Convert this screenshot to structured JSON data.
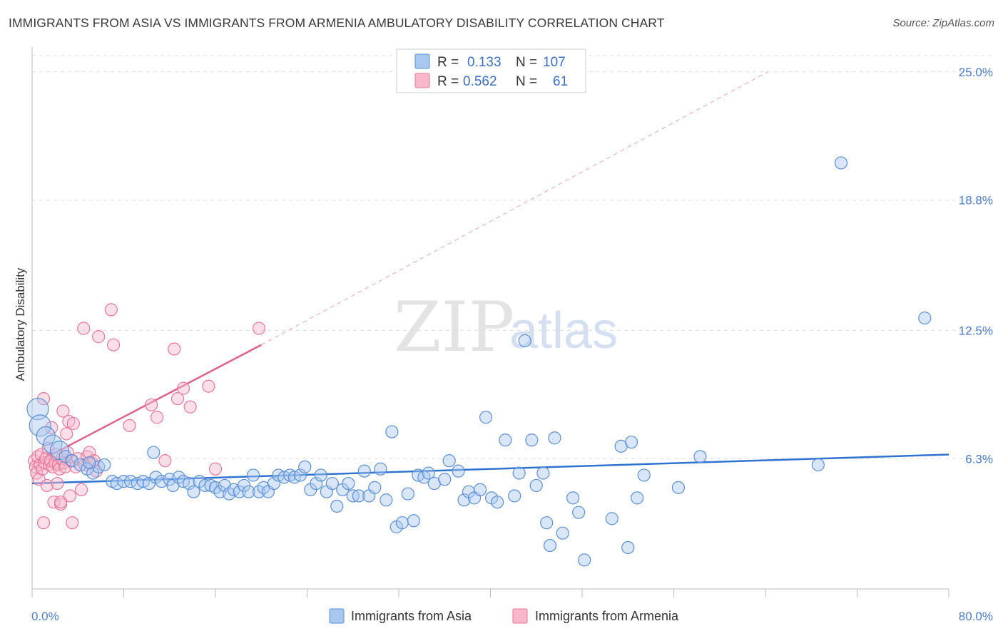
{
  "header": {
    "title": "IMMIGRANTS FROM ASIA VS IMMIGRANTS FROM ARMENIA AMBULATORY DISABILITY CORRELATION CHART",
    "source": "Source: ZipAtlas.com"
  },
  "watermark": {
    "zip": "ZIP",
    "atlas": "atlas"
  },
  "colors": {
    "asia_fill": "#a9c8f0",
    "asia_stroke": "#5b8fd8",
    "asia_line": "#2f73d0",
    "armenia_fill": "#f7b8cb",
    "armenia_stroke": "#e8769a",
    "armenia_line": "#e0608c",
    "grid": "#dcdcdc",
    "axis_label": "#4a7bd0"
  },
  "legend": {
    "rows": [
      {
        "r_label": "R =",
        "r_value": "0.133",
        "n_label": "N =",
        "n_value": "107"
      },
      {
        "r_label": "R =",
        "r_value": "0.562",
        "n_label": "N =",
        "n_value": "61"
      }
    ]
  },
  "bottom_legend": {
    "asia": "Immigrants from Asia",
    "armenia": "Immigrants from Armenia"
  },
  "chart_data": {
    "type": "scatter",
    "title": "IMMIGRANTS FROM ASIA VS IMMIGRANTS FROM ARMENIA AMBULATORY DISABILITY CORRELATION CHART",
    "xlabel": "",
    "ylabel": "Ambulatory Disability",
    "xlim": [
      0,
      80
    ],
    "ylim": [
      0,
      26.2
    ],
    "x_ticks_labeled": [
      "0.0%",
      "80.0%"
    ],
    "y_ticks": [
      6.3,
      12.5,
      18.8,
      25.0
    ],
    "y_tick_labels": [
      "6.3%",
      "12.5%",
      "18.8%",
      "25.0%"
    ],
    "grid": "horizontal dashed",
    "legend_position": "top-center",
    "series": [
      {
        "name": "Immigrants from Asia",
        "R": 0.133,
        "N": 107,
        "trend": {
          "x": [
            0,
            80
          ],
          "y": [
            5.1,
            6.5
          ],
          "style": "solid"
        },
        "points": [
          {
            "x": 0.5,
            "y": 8.7,
            "s": 3
          },
          {
            "x": 0.7,
            "y": 7.9,
            "s": 3
          },
          {
            "x": 1.2,
            "y": 7.4,
            "s": 2
          },
          {
            "x": 1.8,
            "y": 7.0,
            "s": 2
          },
          {
            "x": 2.4,
            "y": 6.7,
            "s": 2
          },
          {
            "x": 2.9,
            "y": 6.4,
            "s": 1
          },
          {
            "x": 3.5,
            "y": 6.2,
            "s": 1
          },
          {
            "x": 4.2,
            "y": 6.0,
            "s": 1
          },
          {
            "x": 4.8,
            "y": 5.8,
            "s": 1
          },
          {
            "x": 5.3,
            "y": 5.6,
            "s": 1
          },
          {
            "x": 5.8,
            "y": 5.9,
            "s": 1
          },
          {
            "x": 5.0,
            "y": 6.1,
            "s": 1
          },
          {
            "x": 6.3,
            "y": 6.0,
            "s": 1
          },
          {
            "x": 7.0,
            "y": 5.2,
            "s": 1
          },
          {
            "x": 7.4,
            "y": 5.1,
            "s": 1
          },
          {
            "x": 8.0,
            "y": 5.2,
            "s": 1
          },
          {
            "x": 8.6,
            "y": 5.2,
            "s": 1
          },
          {
            "x": 9.2,
            "y": 5.1,
            "s": 1
          },
          {
            "x": 9.7,
            "y": 5.2,
            "s": 1
          },
          {
            "x": 10.2,
            "y": 5.1,
            "s": 1
          },
          {
            "x": 10.8,
            "y": 5.4,
            "s": 1
          },
          {
            "x": 11.3,
            "y": 5.2,
            "s": 1
          },
          {
            "x": 10.6,
            "y": 6.6,
            "s": 1
          },
          {
            "x": 12.0,
            "y": 5.3,
            "s": 1
          },
          {
            "x": 12.3,
            "y": 5.0,
            "s": 1
          },
          {
            "x": 12.8,
            "y": 5.4,
            "s": 1
          },
          {
            "x": 13.2,
            "y": 5.2,
            "s": 1
          },
          {
            "x": 13.7,
            "y": 5.1,
            "s": 1
          },
          {
            "x": 14.1,
            "y": 4.7,
            "s": 1
          },
          {
            "x": 14.6,
            "y": 5.2,
            "s": 1
          },
          {
            "x": 15.1,
            "y": 5.0,
            "s": 1
          },
          {
            "x": 15.6,
            "y": 5.0,
            "s": 1
          },
          {
            "x": 16.0,
            "y": 4.9,
            "s": 1
          },
          {
            "x": 16.4,
            "y": 4.7,
            "s": 1
          },
          {
            "x": 16.8,
            "y": 5.0,
            "s": 1
          },
          {
            "x": 17.2,
            "y": 4.6,
            "s": 1
          },
          {
            "x": 17.6,
            "y": 4.8,
            "s": 1
          },
          {
            "x": 18.1,
            "y": 4.7,
            "s": 1
          },
          {
            "x": 18.5,
            "y": 5.0,
            "s": 1
          },
          {
            "x": 18.9,
            "y": 4.7,
            "s": 1
          },
          {
            "x": 19.3,
            "y": 5.5,
            "s": 1
          },
          {
            "x": 19.8,
            "y": 4.7,
            "s": 1
          },
          {
            "x": 20.2,
            "y": 4.9,
            "s": 1
          },
          {
            "x": 20.6,
            "y": 4.7,
            "s": 1
          },
          {
            "x": 21.1,
            "y": 5.1,
            "s": 1
          },
          {
            "x": 21.5,
            "y": 5.5,
            "s": 1
          },
          {
            "x": 22.0,
            "y": 5.4,
            "s": 1
          },
          {
            "x": 22.5,
            "y": 5.5,
            "s": 1
          },
          {
            "x": 22.9,
            "y": 5.4,
            "s": 1
          },
          {
            "x": 23.4,
            "y": 5.5,
            "s": 1
          },
          {
            "x": 23.8,
            "y": 5.9,
            "s": 1
          },
          {
            "x": 24.3,
            "y": 4.8,
            "s": 1
          },
          {
            "x": 24.8,
            "y": 5.1,
            "s": 1
          },
          {
            "x": 25.2,
            "y": 5.5,
            "s": 1
          },
          {
            "x": 25.7,
            "y": 4.7,
            "s": 1
          },
          {
            "x": 26.2,
            "y": 5.1,
            "s": 1
          },
          {
            "x": 26.6,
            "y": 4.0,
            "s": 1
          },
          {
            "x": 27.1,
            "y": 4.8,
            "s": 1
          },
          {
            "x": 27.6,
            "y": 5.1,
            "s": 1
          },
          {
            "x": 28.0,
            "y": 4.5,
            "s": 1
          },
          {
            "x": 28.5,
            "y": 4.5,
            "s": 1
          },
          {
            "x": 29.0,
            "y": 5.7,
            "s": 1
          },
          {
            "x": 29.4,
            "y": 4.5,
            "s": 1
          },
          {
            "x": 29.9,
            "y": 4.9,
            "s": 1
          },
          {
            "x": 30.4,
            "y": 5.8,
            "s": 1
          },
          {
            "x": 30.9,
            "y": 4.3,
            "s": 1
          },
          {
            "x": 31.4,
            "y": 7.6,
            "s": 1
          },
          {
            "x": 31.8,
            "y": 3.0,
            "s": 1
          },
          {
            "x": 32.3,
            "y": 3.2,
            "s": 1
          },
          {
            "x": 32.8,
            "y": 4.6,
            "s": 1
          },
          {
            "x": 33.3,
            "y": 3.3,
            "s": 1
          },
          {
            "x": 33.7,
            "y": 5.5,
            "s": 1
          },
          {
            "x": 34.2,
            "y": 5.4,
            "s": 1
          },
          {
            "x": 34.6,
            "y": 5.6,
            "s": 1
          },
          {
            "x": 35.1,
            "y": 5.1,
            "s": 1
          },
          {
            "x": 36.0,
            "y": 5.3,
            "s": 1
          },
          {
            "x": 36.4,
            "y": 6.2,
            "s": 1
          },
          {
            "x": 37.2,
            "y": 5.7,
            "s": 1
          },
          {
            "x": 37.7,
            "y": 4.3,
            "s": 1
          },
          {
            "x": 38.1,
            "y": 4.7,
            "s": 1
          },
          {
            "x": 38.6,
            "y": 4.4,
            "s": 1
          },
          {
            "x": 39.1,
            "y": 4.8,
            "s": 1
          },
          {
            "x": 39.6,
            "y": 8.3,
            "s": 1
          },
          {
            "x": 40.1,
            "y": 4.4,
            "s": 1
          },
          {
            "x": 40.6,
            "y": 4.2,
            "s": 1
          },
          {
            "x": 41.3,
            "y": 7.2,
            "s": 1
          },
          {
            "x": 42.1,
            "y": 4.5,
            "s": 1
          },
          {
            "x": 42.5,
            "y": 5.6,
            "s": 1
          },
          {
            "x": 43.0,
            "y": 12.0,
            "s": 1
          },
          {
            "x": 43.6,
            "y": 7.2,
            "s": 1
          },
          {
            "x": 44.0,
            "y": 5.0,
            "s": 1
          },
          {
            "x": 44.6,
            "y": 5.6,
            "s": 1
          },
          {
            "x": 44.9,
            "y": 3.2,
            "s": 1
          },
          {
            "x": 45.2,
            "y": 2.1,
            "s": 1
          },
          {
            "x": 45.6,
            "y": 7.3,
            "s": 1
          },
          {
            "x": 46.3,
            "y": 2.7,
            "s": 1
          },
          {
            "x": 47.2,
            "y": 4.4,
            "s": 1
          },
          {
            "x": 47.7,
            "y": 3.7,
            "s": 1
          },
          {
            "x": 48.2,
            "y": 1.4,
            "s": 1
          },
          {
            "x": 50.6,
            "y": 3.4,
            "s": 1
          },
          {
            "x": 51.4,
            "y": 6.9,
            "s": 1
          },
          {
            "x": 52.0,
            "y": 2.0,
            "s": 1
          },
          {
            "x": 52.3,
            "y": 7.1,
            "s": 1
          },
          {
            "x": 52.8,
            "y": 4.4,
            "s": 1
          },
          {
            "x": 53.4,
            "y": 5.5,
            "s": 1
          },
          {
            "x": 56.4,
            "y": 4.9,
            "s": 1
          },
          {
            "x": 58.3,
            "y": 6.4,
            "s": 1
          },
          {
            "x": 68.6,
            "y": 6.0,
            "s": 1
          },
          {
            "x": 70.6,
            "y": 20.6,
            "s": 1
          },
          {
            "x": 77.9,
            "y": 13.1,
            "s": 1
          }
        ]
      },
      {
        "name": "Immigrants from Armenia",
        "R": 0.562,
        "N": 61,
        "trend": {
          "x": [
            0,
            20.0
          ],
          "y": [
            6.0,
            11.8
          ],
          "style": "solid",
          "extended_to": [
            64.2,
            25.0
          ],
          "extended_style": "dashed"
        },
        "points": [
          {
            "x": 0.2,
            "y": 6.2,
            "s": 1
          },
          {
            "x": 0.3,
            "y": 5.9,
            "s": 1
          },
          {
            "x": 0.4,
            "y": 5.6,
            "s": 1
          },
          {
            "x": 0.5,
            "y": 6.4,
            "s": 1
          },
          {
            "x": 0.6,
            "y": 5.3,
            "s": 1
          },
          {
            "x": 0.7,
            "y": 6.0,
            "s": 1
          },
          {
            "x": 0.8,
            "y": 6.5,
            "s": 1
          },
          {
            "x": 0.9,
            "y": 5.8,
            "s": 1
          },
          {
            "x": 1.0,
            "y": 9.2,
            "s": 1
          },
          {
            "x": 1.1,
            "y": 6.1,
            "s": 1
          },
          {
            "x": 1.2,
            "y": 6.3,
            "s": 1
          },
          {
            "x": 1.3,
            "y": 5.0,
            "s": 1
          },
          {
            "x": 1.4,
            "y": 6.8,
            "s": 1
          },
          {
            "x": 1.5,
            "y": 6.0,
            "s": 1
          },
          {
            "x": 1.6,
            "y": 6.2,
            "s": 1
          },
          {
            "x": 1.7,
            "y": 7.8,
            "s": 1
          },
          {
            "x": 1.8,
            "y": 5.9,
            "s": 1
          },
          {
            "x": 1.9,
            "y": 4.2,
            "s": 1
          },
          {
            "x": 2.0,
            "y": 6.1,
            "s": 1
          },
          {
            "x": 2.1,
            "y": 6.5,
            "s": 1
          },
          {
            "x": 2.2,
            "y": 5.1,
            "s": 1
          },
          {
            "x": 2.3,
            "y": 6.0,
            "s": 1
          },
          {
            "x": 2.4,
            "y": 5.8,
            "s": 1
          },
          {
            "x": 2.5,
            "y": 4.1,
            "s": 1
          },
          {
            "x": 2.6,
            "y": 6.3,
            "s": 1
          },
          {
            "x": 2.7,
            "y": 8.6,
            "s": 1
          },
          {
            "x": 2.8,
            "y": 6.1,
            "s": 1
          },
          {
            "x": 2.9,
            "y": 5.9,
            "s": 1
          },
          {
            "x": 3.0,
            "y": 7.5,
            "s": 1
          },
          {
            "x": 3.1,
            "y": 6.6,
            "s": 1
          },
          {
            "x": 3.2,
            "y": 8.1,
            "s": 1
          },
          {
            "x": 3.3,
            "y": 4.5,
            "s": 1
          },
          {
            "x": 3.4,
            "y": 6.2,
            "s": 1
          },
          {
            "x": 3.6,
            "y": 8.0,
            "s": 1
          },
          {
            "x": 3.8,
            "y": 5.9,
            "s": 1
          },
          {
            "x": 4.0,
            "y": 6.3,
            "s": 1
          },
          {
            "x": 4.3,
            "y": 4.8,
            "s": 1
          },
          {
            "x": 4.6,
            "y": 6.0,
            "s": 1
          },
          {
            "x": 4.8,
            "y": 6.4,
            "s": 1
          },
          {
            "x": 5.0,
            "y": 6.6,
            "s": 1
          },
          {
            "x": 5.2,
            "y": 6.1,
            "s": 1
          },
          {
            "x": 5.4,
            "y": 6.2,
            "s": 1
          },
          {
            "x": 5.6,
            "y": 5.7,
            "s": 1
          },
          {
            "x": 1.0,
            "y": 3.2,
            "s": 1
          },
          {
            "x": 3.5,
            "y": 3.2,
            "s": 1
          },
          {
            "x": 2.5,
            "y": 4.2,
            "s": 1
          },
          {
            "x": 5.8,
            "y": 12.2,
            "s": 1
          },
          {
            "x": 6.9,
            "y": 13.5,
            "s": 1
          },
          {
            "x": 7.1,
            "y": 11.8,
            "s": 1
          },
          {
            "x": 8.5,
            "y": 7.9,
            "s": 1
          },
          {
            "x": 10.4,
            "y": 8.9,
            "s": 1
          },
          {
            "x": 10.9,
            "y": 8.3,
            "s": 1
          },
          {
            "x": 11.6,
            "y": 6.2,
            "s": 1
          },
          {
            "x": 12.7,
            "y": 9.2,
            "s": 1
          },
          {
            "x": 13.2,
            "y": 9.7,
            "s": 1
          },
          {
            "x": 13.8,
            "y": 8.8,
            "s": 1
          },
          {
            "x": 15.4,
            "y": 9.8,
            "s": 1
          },
          {
            "x": 16.0,
            "y": 5.8,
            "s": 1
          },
          {
            "x": 4.5,
            "y": 12.6,
            "s": 1
          },
          {
            "x": 19.8,
            "y": 12.6,
            "s": 1
          },
          {
            "x": 12.4,
            "y": 11.6,
            "s": 1
          }
        ]
      }
    ]
  }
}
